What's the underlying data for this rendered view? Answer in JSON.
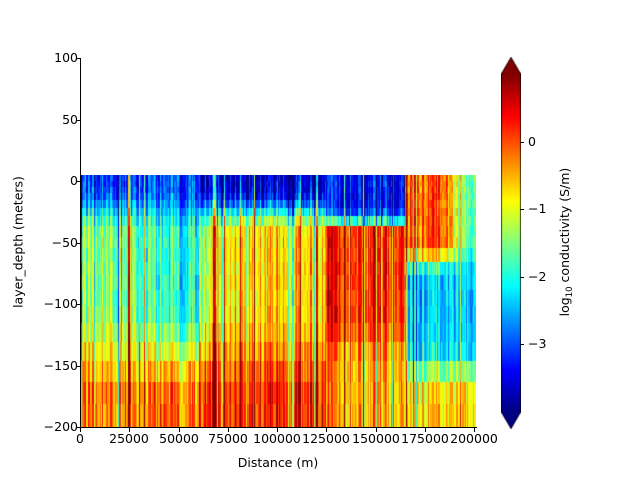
{
  "chart_data": {
    "type": "heatmap",
    "title": "",
    "xlabel": "Distance (m)",
    "ylabel": "layer_depth (meters)",
    "xlim": [
      0,
      202000
    ],
    "ylim": [
      -200,
      100
    ],
    "xticks": [
      0,
      25000,
      50000,
      75000,
      100000,
      125000,
      150000,
      175000,
      200000
    ],
    "xtick_labels": [
      "0",
      "25000",
      "50000",
      "75000",
      "100000",
      "125000",
      "150000",
      "175000",
      "200000"
    ],
    "yticks": [
      100,
      50,
      0,
      -50,
      -100,
      -150,
      -200
    ],
    "ytick_labels": [
      "100",
      "50",
      "0",
      "−50",
      "−100",
      "−150",
      "−200"
    ],
    "grid": false,
    "colormap": "jet",
    "colorbar": {
      "label_prefix": "log",
      "label_sub": "10",
      "label_suffix": " conductivity (S/m)",
      "vmin": -4.0,
      "vmax": 1.0,
      "extend": "both",
      "ticks": [
        0,
        -1,
        -2,
        -3
      ],
      "tick_labels": [
        "0",
        "−1",
        "−2",
        "−3"
      ]
    },
    "data_extent": {
      "x_start": 0,
      "x_end": 201000,
      "depth_top": 5,
      "depth_bottom": -200
    },
    "layer_boundaries_depth": [
      5,
      0,
      -5,
      -10,
      -16,
      -22,
      -29,
      -37,
      -46,
      -55,
      -66,
      -77,
      -89,
      -102,
      -116,
      -131,
      -147,
      -164,
      -182,
      -200
    ],
    "regional_pattern": [
      {
        "x_range": [
          0,
          60000
        ],
        "near_surface": "blue (-3.5)",
        "middle": "cyan/yellow (-1.5)",
        "deep": "red/orange (0)"
      },
      {
        "x_range": [
          60000,
          125000
        ],
        "near_surface": "deep blue (-3.5)",
        "middle": "cyan/yellow (-1.5)",
        "deep": "red (0.3)"
      },
      {
        "x_range": [
          125000,
          165000
        ],
        "near_surface": "blue (-3.3)",
        "middle": "orange/red conductor (0.2)",
        "deep": "yellow/orange (-0.5)"
      },
      {
        "x_range": [
          165000,
          201000
        ],
        "near_surface": "orange/red (0)",
        "middle": "cyan/blue (-2.5)",
        "deep": "yellow/red (-0.5)"
      }
    ]
  }
}
